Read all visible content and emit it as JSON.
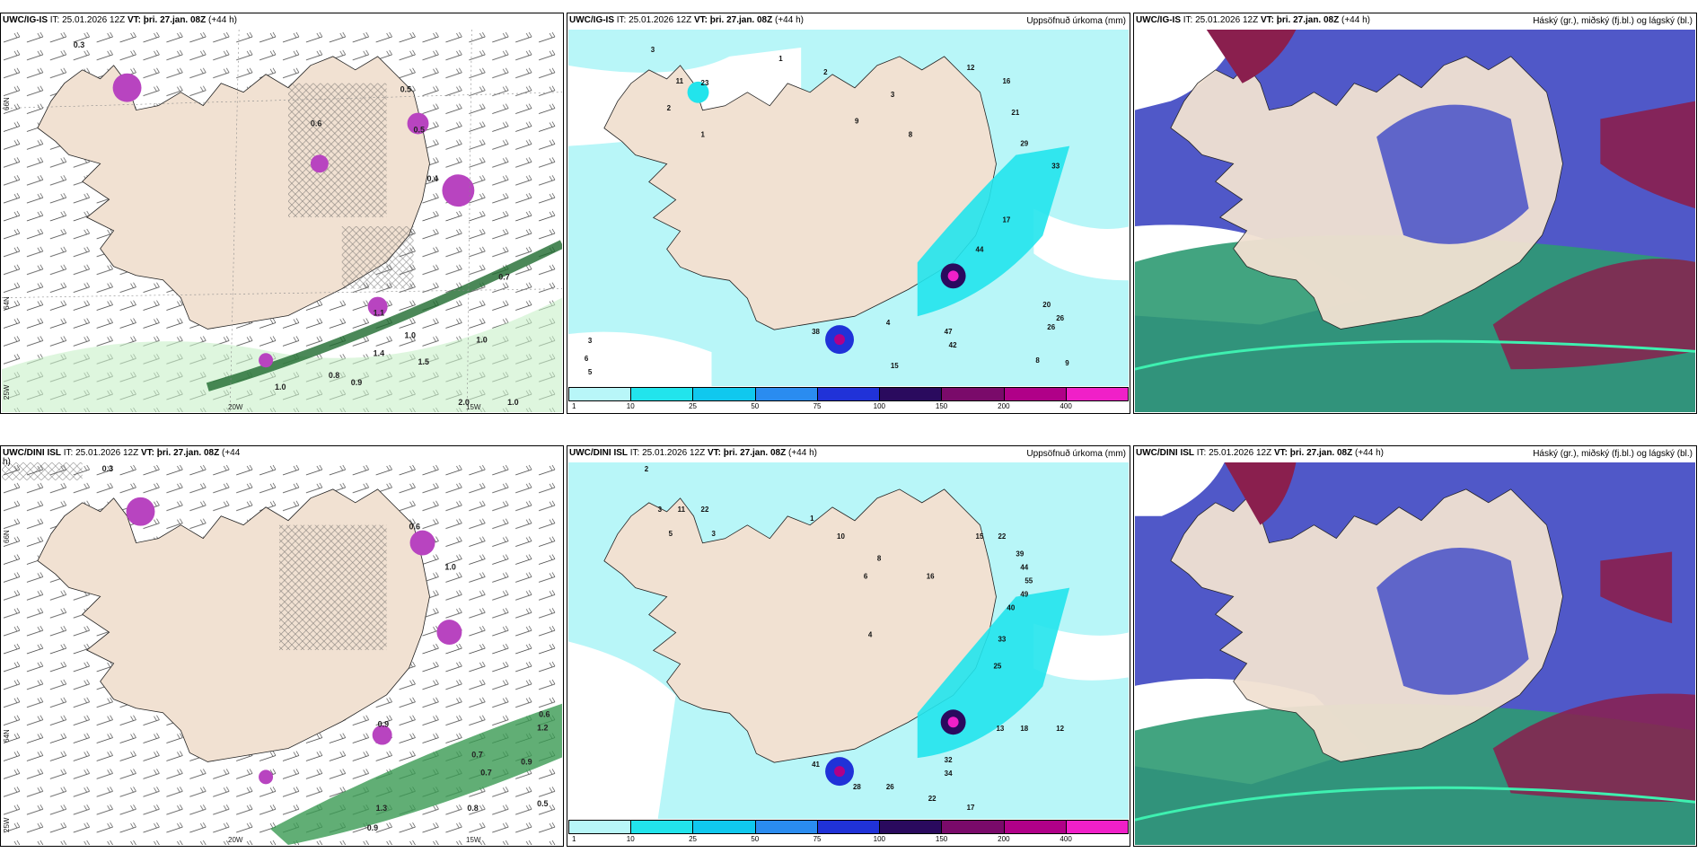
{
  "colors": {
    "land": "#f1e1d2",
    "sea": "#ffffff",
    "precip_light": "#b8f6f8",
    "precip_mid": "#22e4ec",
    "cloud_high_grey": "#cfcfcf",
    "cloud_mid_blue": "#5058c8",
    "cloud_low_green": "#2e9a72",
    "cloud_low_red": "#8a1f4e"
  },
  "panels": [
    {
      "id": "igis-winds",
      "model": "UWC/IG-IS",
      "it_label": "IT:",
      "it_value": "25.01.2026 12Z",
      "vt_label": "VT:",
      "vt_value": "þri. 27.jan. 08Z",
      "lead": "(+44 h)",
      "right_title": "",
      "lon_labels": [
        "20W",
        "15W"
      ],
      "lat_labels": [
        "66N",
        "64N",
        "25W"
      ],
      "values": [
        "0.5",
        "0.5",
        "0.4",
        "0.6",
        "0.3",
        "0.7",
        "1.0",
        "1.0",
        "0.8",
        "1.4",
        "1.5",
        "2.0",
        "1.0",
        "1.0",
        "0.9",
        "1.1"
      ]
    },
    {
      "id": "igis-precip",
      "model": "UWC/IG-IS",
      "it_label": "IT:",
      "it_value": "25.01.2026 12Z",
      "vt_label": "VT:",
      "vt_value": "þri. 27.jan. 08Z",
      "lead": "(+44 h)",
      "right_title": "Uppsöfnuð úrkoma (mm)",
      "values": [
        "3",
        "1",
        "2",
        "11",
        "23",
        "2",
        "1",
        "3",
        "9",
        "8",
        "12",
        "16",
        "21",
        "29",
        "33",
        "17",
        "44",
        "26",
        "38",
        "47",
        "42",
        "15",
        "4",
        "3",
        "6",
        "5",
        "20",
        "26",
        "9",
        "8"
      ]
    },
    {
      "id": "igis-clouds",
      "model": "UWC/IG-IS",
      "it_label": "IT:",
      "it_value": "25.01.2026 12Z",
      "vt_label": "VT:",
      "vt_value": "þri. 27.jan. 08Z",
      "lead": "(+44 h)",
      "right_title": "Háský (gr.), miðský (fj.bl.) og lágský (bl.)"
    },
    {
      "id": "dini-winds",
      "model": "UWC/DINI ISL",
      "it_label": "IT:",
      "it_value": "25.01.2026 12Z",
      "vt_label": "VT:",
      "vt_value": "þri. 27.jan. 08Z",
      "lead": "(+44",
      "lead2": "h)",
      "right_title": "",
      "lon_labels": [
        "20W",
        "15W"
      ],
      "lat_labels": [
        "66N",
        "64N",
        "25W"
      ],
      "values": [
        "0.3",
        "0.6",
        "1.0",
        "0.9",
        "0.6",
        "0.7",
        "1.2",
        "0.5",
        "0.9",
        "1.3",
        "0.9",
        "0.7",
        "0.8"
      ]
    },
    {
      "id": "dini-precip",
      "model": "UWC/DINI ISL",
      "it_label": "IT:",
      "it_value": "25.01.2026 12Z",
      "vt_label": "VT:",
      "vt_value": "þri. 27.jan. 08Z",
      "lead": "(+44 h)",
      "right_title": "Uppsöfnuð úrkoma (mm)",
      "values": [
        "2",
        "3",
        "11",
        "22",
        "5",
        "3",
        "1",
        "10",
        "8",
        "4",
        "6",
        "16",
        "15",
        "22",
        "39",
        "44",
        "55",
        "49",
        "40",
        "33",
        "25",
        "41",
        "28",
        "26",
        "32",
        "34",
        "22",
        "17",
        "13",
        "18",
        "12"
      ]
    },
    {
      "id": "dini-clouds",
      "model": "UWC/DINI ISL",
      "it_label": "IT:",
      "it_value": "25.01.2026 12Z",
      "vt_label": "VT:",
      "vt_value": "þri. 27.jan. 08Z",
      "lead": "(+44 h)",
      "right_title": "Háský (gr.), miðský (fj.bl.) og lágský (bl.)"
    }
  ],
  "colorbar": {
    "ticks": [
      "1",
      "10",
      "25",
      "50",
      "75",
      "100",
      "150",
      "200",
      "400"
    ],
    "colors": [
      "#b8f6f8",
      "#22e4ec",
      "#10c8ee",
      "#2a8cf0",
      "#2032d8",
      "#2a0a5e",
      "#7a0a6a",
      "#b00088",
      "#f020c8",
      "#f8b8f0"
    ]
  }
}
